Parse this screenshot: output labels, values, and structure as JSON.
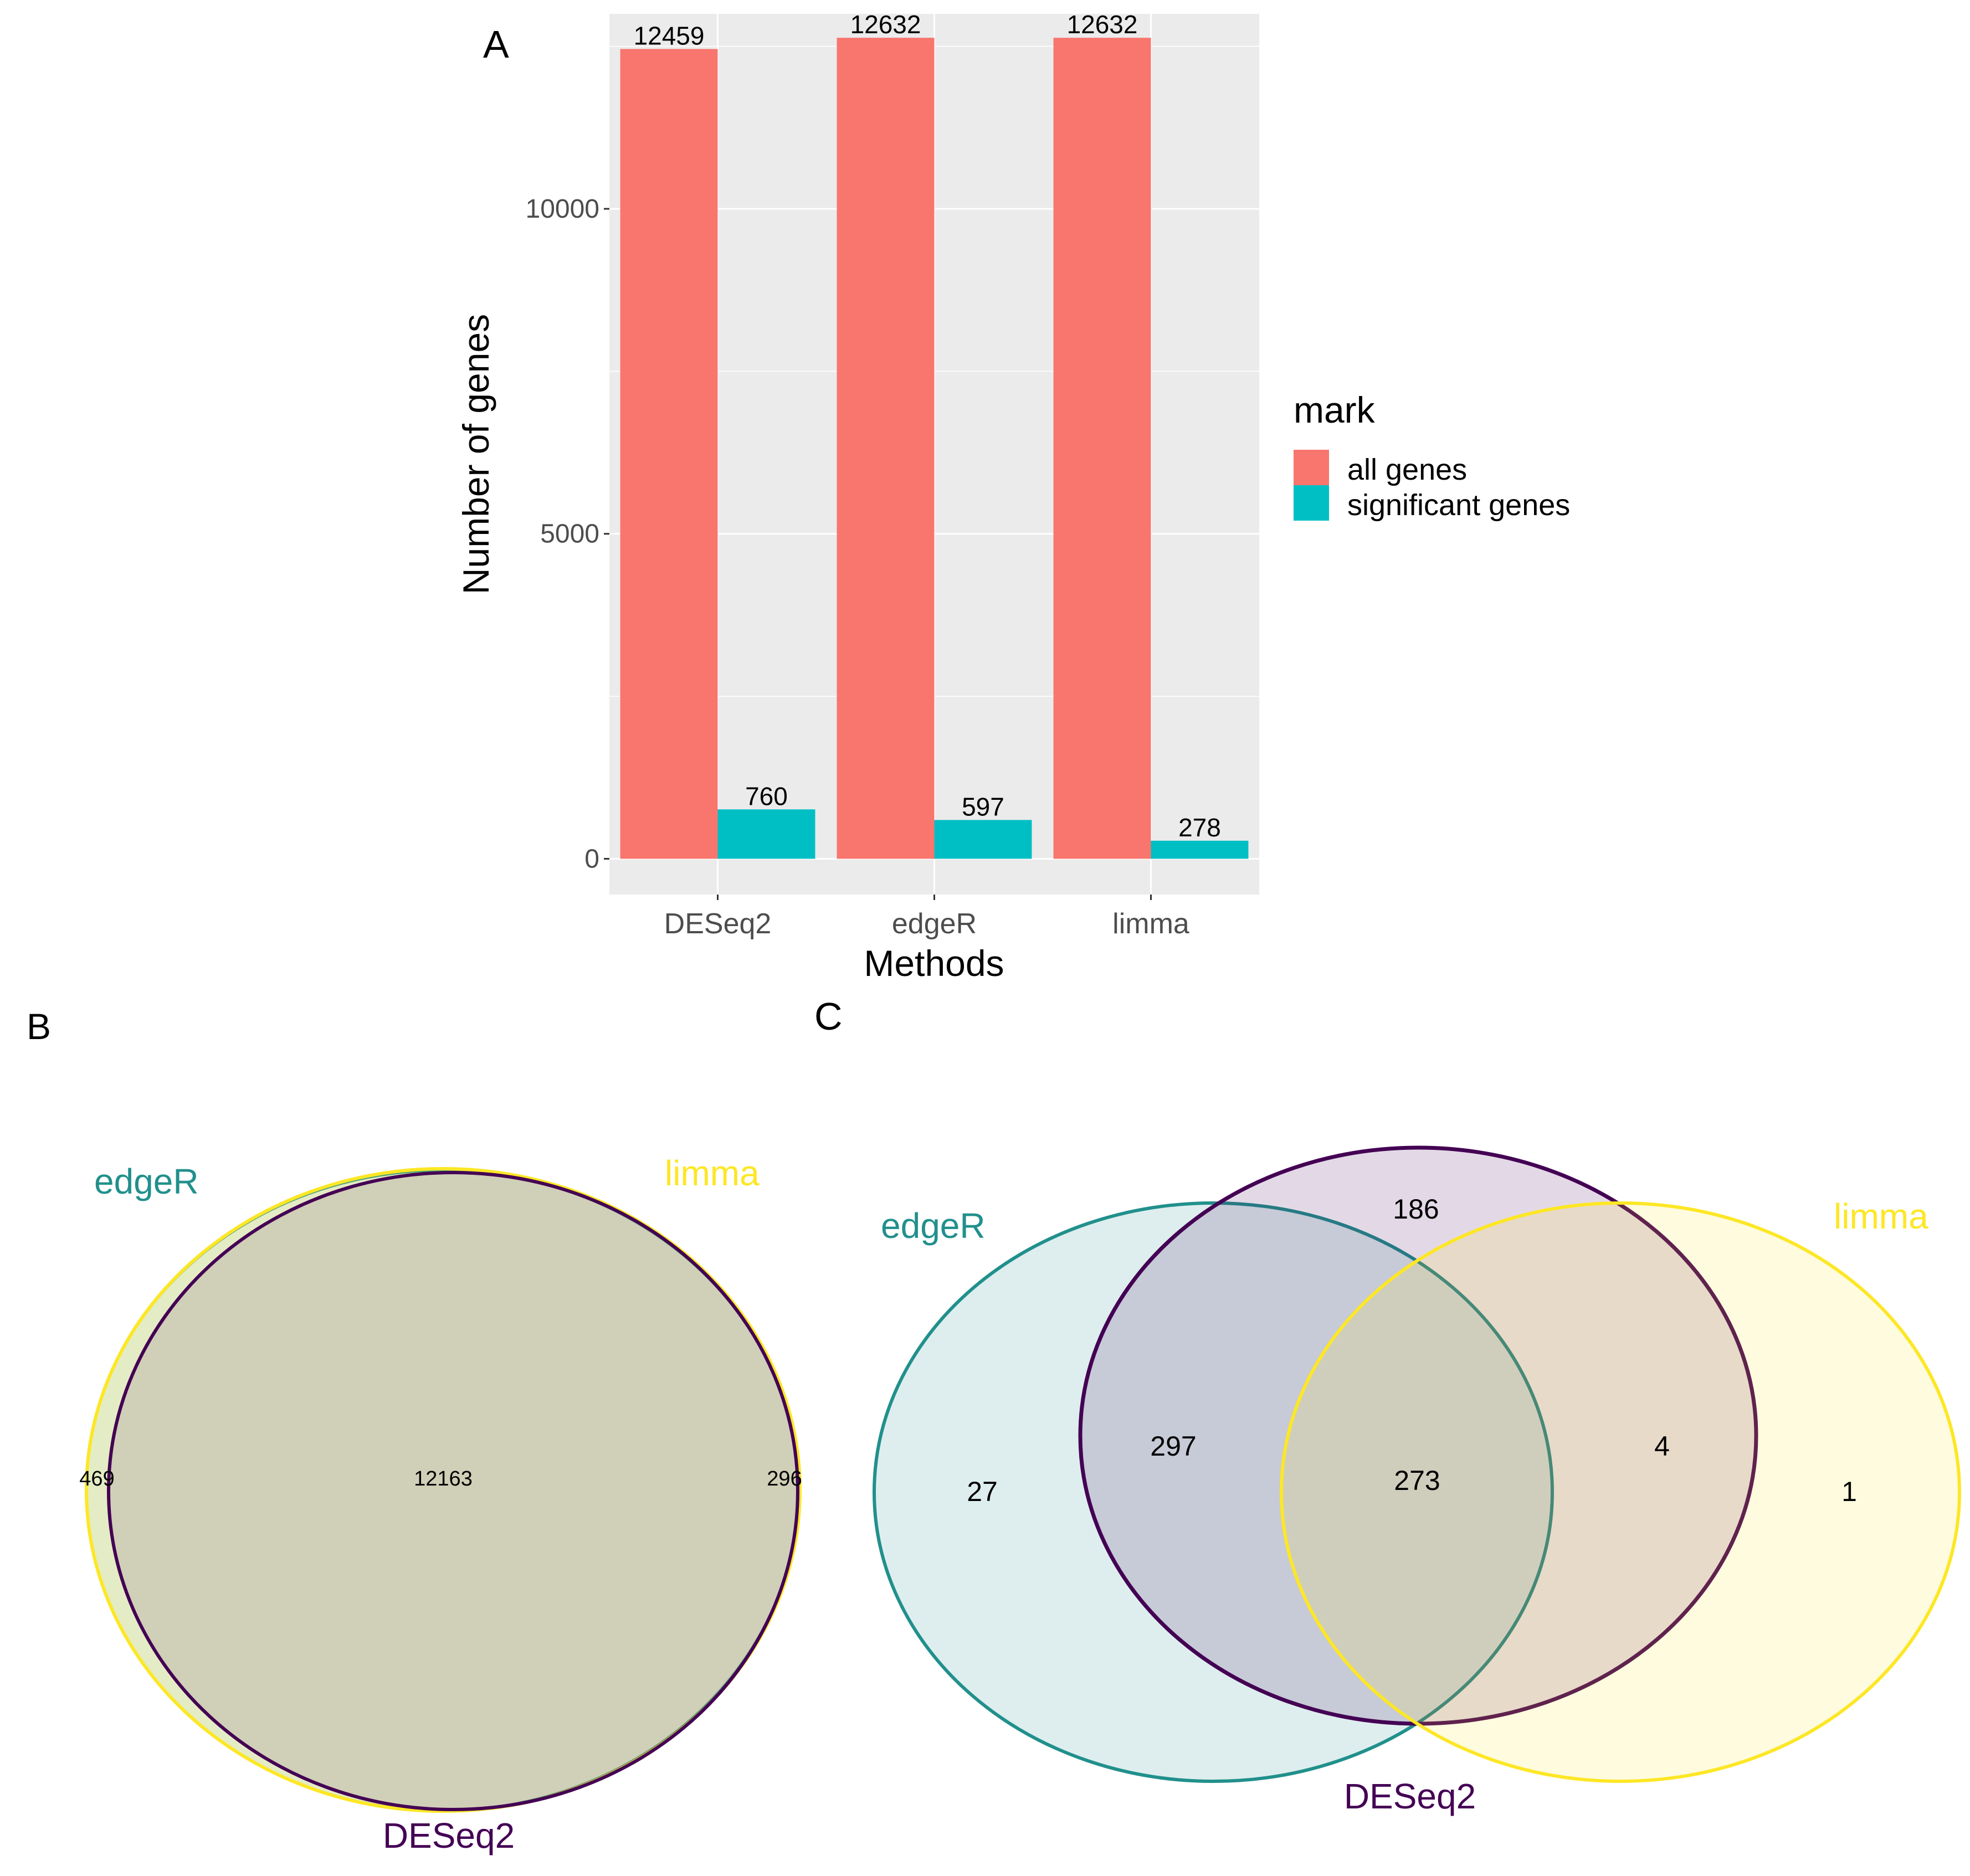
{
  "panels": {
    "a": "A",
    "b": "B",
    "c": "C"
  },
  "chart_data": [
    {
      "type": "bar",
      "xlabel": "Methods",
      "ylabel": "Number of genes",
      "categories": [
        "DESeq2",
        "edgeR",
        "limma"
      ],
      "ylim": [
        -550,
        13000
      ],
      "yticks": [
        0,
        5000,
        10000
      ],
      "grid": true,
      "legend": {
        "title": "mark",
        "placement": "right"
      },
      "series": [
        {
          "name": "all genes",
          "color": "#F8766D",
          "values": [
            12459,
            12632,
            12632
          ]
        },
        {
          "name": "significant genes",
          "color": "#00BFC4",
          "values": [
            760,
            597,
            278
          ]
        }
      ],
      "data_labels": [
        [
          "12459",
          "12632",
          "12632"
        ],
        [
          "760",
          "597",
          "278"
        ]
      ]
    },
    {
      "type": "venn",
      "sets": [
        {
          "name": "edgeR",
          "color": "#21908C"
        },
        {
          "name": "limma",
          "color": "#FDE725"
        },
        {
          "name": "DESeq2",
          "color": "#440154"
        }
      ],
      "regions": {
        "edgeR_only": "469",
        "all_three": "12163",
        "DESeq2_only": "296"
      }
    },
    {
      "type": "venn",
      "sets": [
        {
          "name": "edgeR",
          "color": "#21908C"
        },
        {
          "name": "DESeq2",
          "color": "#440154"
        },
        {
          "name": "limma",
          "color": "#FDE725"
        }
      ],
      "regions": {
        "DESeq2_only": "186",
        "edgeR_only": "27",
        "edgeR_DESeq2": "297",
        "all_three": "273",
        "DESeq2_limma": "4",
        "limma_only": "1"
      }
    }
  ]
}
